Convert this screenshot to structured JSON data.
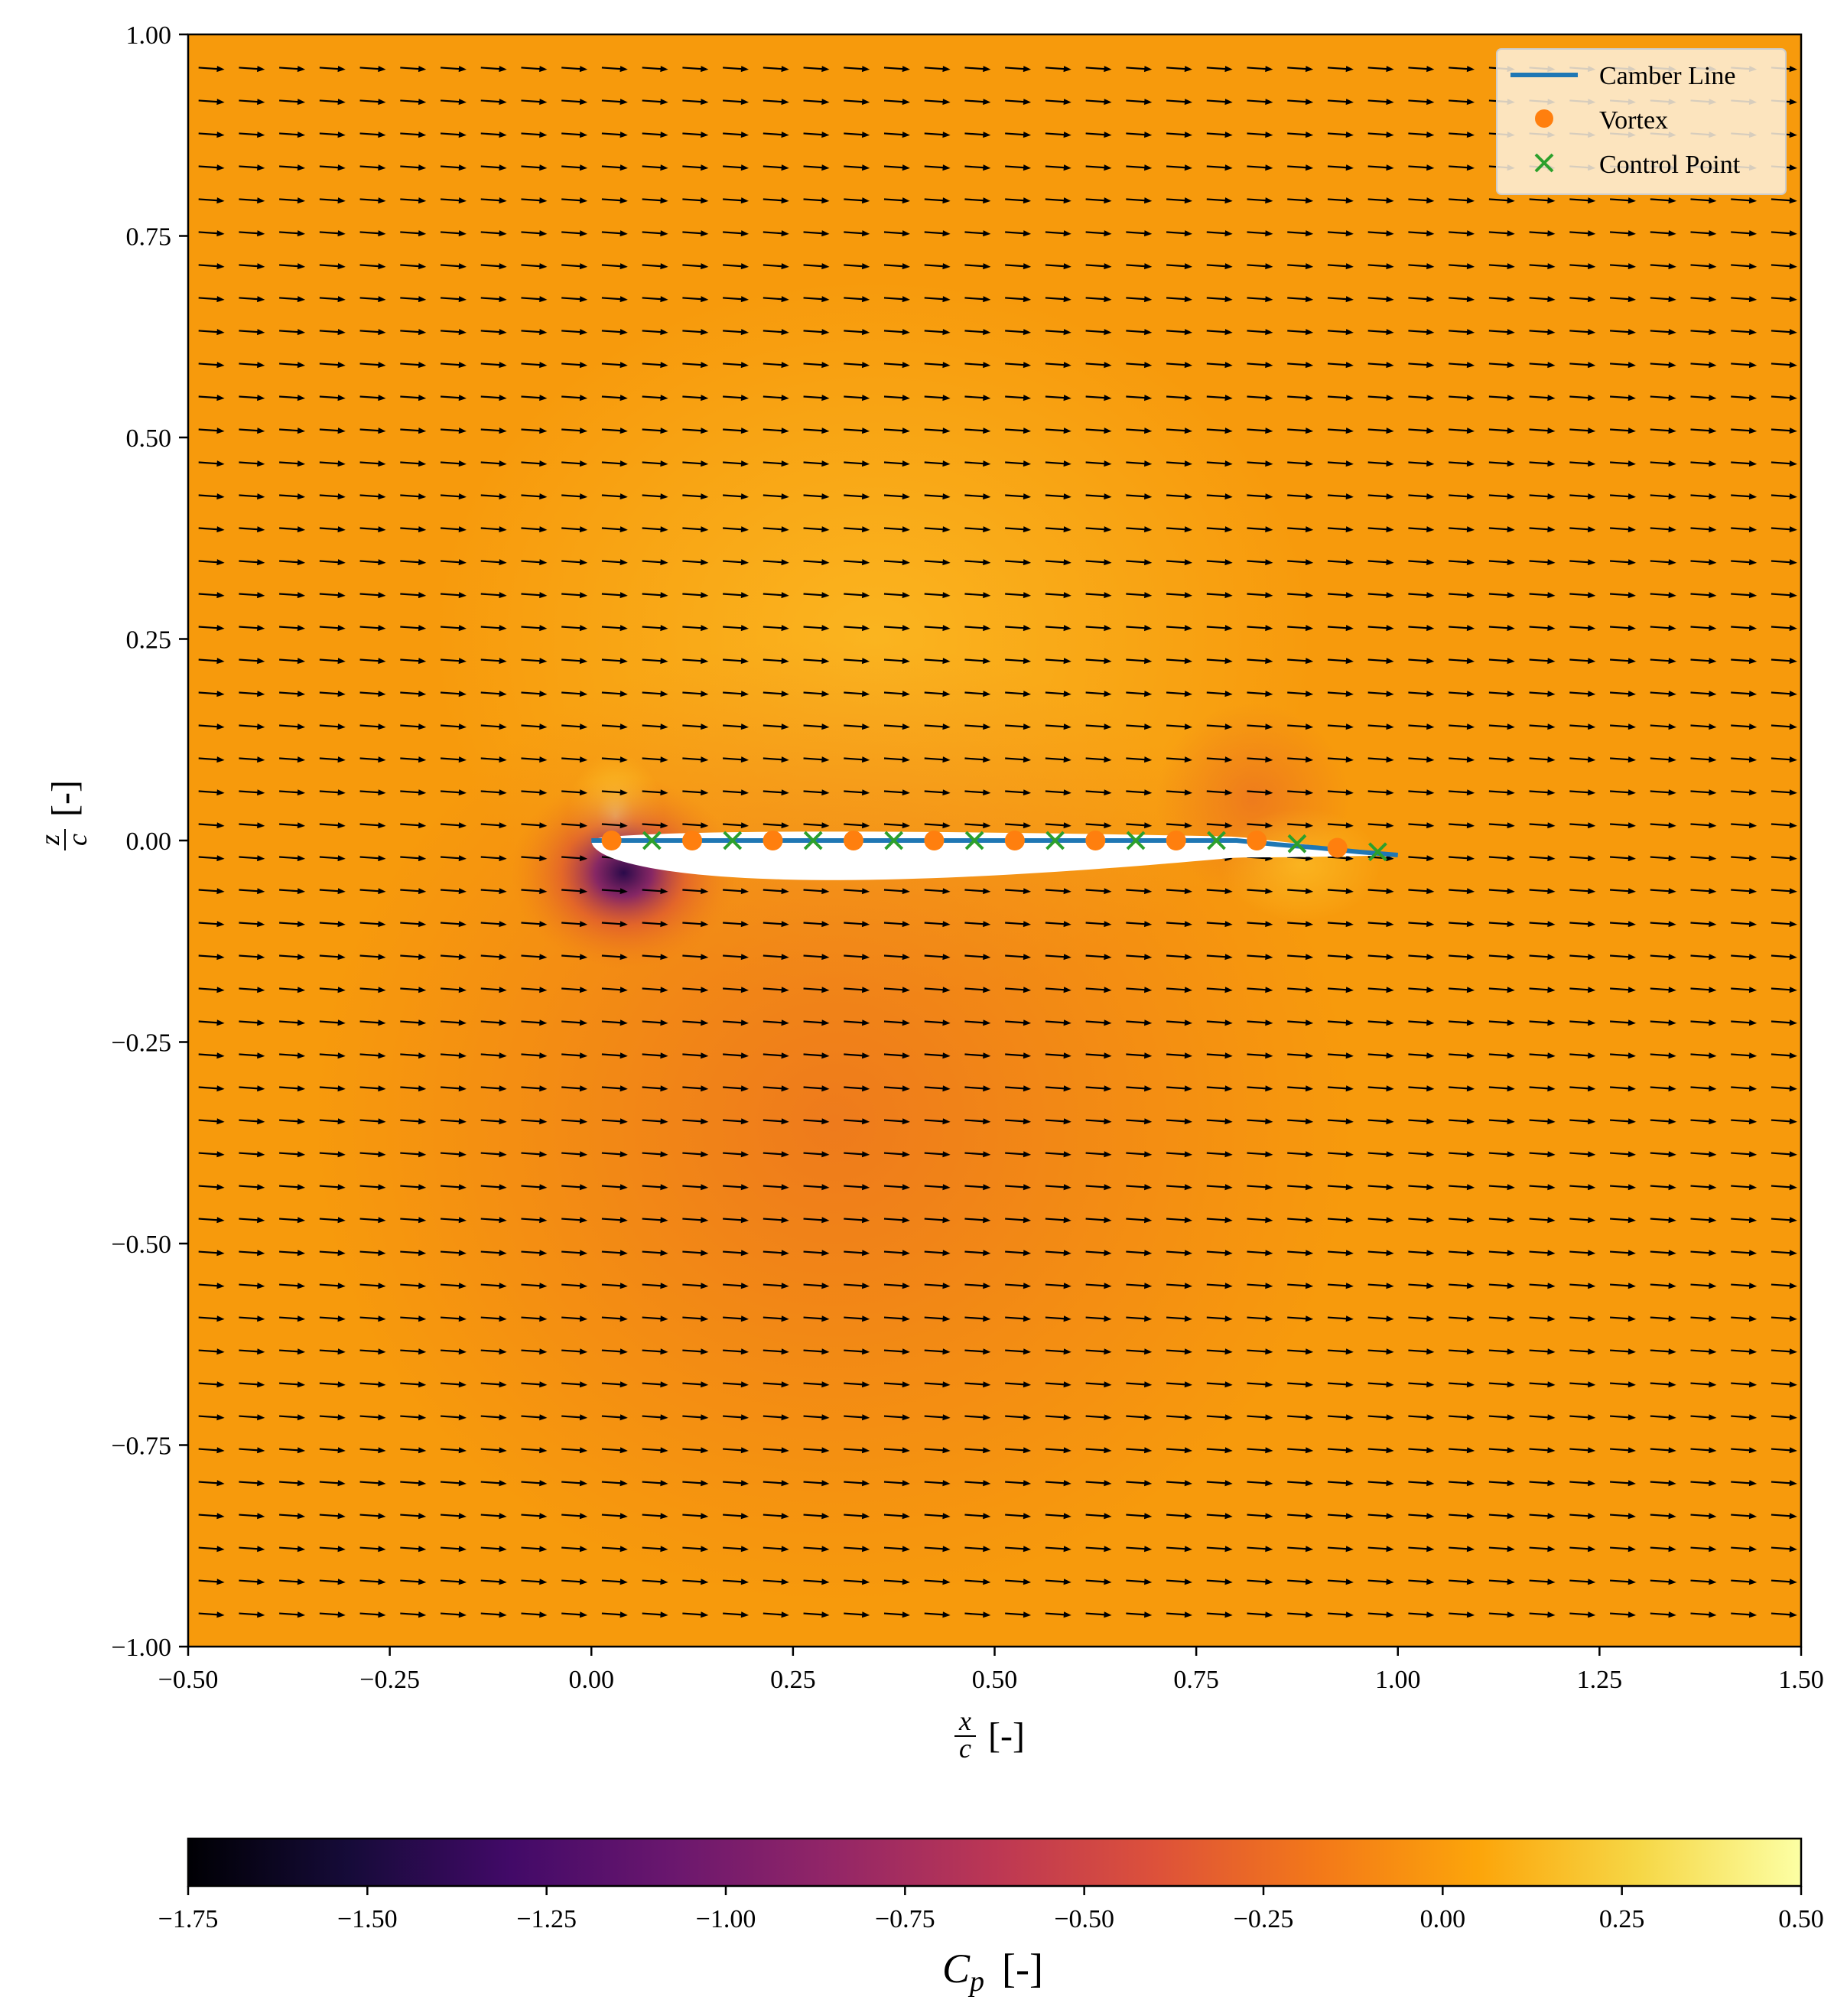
{
  "chart_data": {
    "type": "heatmap",
    "title": "",
    "xlabel": {
      "symbol": "x",
      "denominator": "c",
      "unit": "[-]"
    },
    "ylabel": {
      "symbol": "z",
      "denominator": "c",
      "unit": "[-]"
    },
    "xlim": [
      -0.5,
      1.5
    ],
    "ylim": [
      -1.0,
      1.0
    ],
    "xticks": [
      -0.5,
      -0.25,
      0.0,
      0.25,
      0.5,
      0.75,
      1.0,
      1.25,
      1.5
    ],
    "xtick_labels": [
      "−0.50",
      "−0.25",
      "0.00",
      "0.25",
      "0.50",
      "0.75",
      "1.00",
      "1.25",
      "1.50"
    ],
    "yticks": [
      1.0,
      0.75,
      0.5,
      0.25,
      0.0,
      -0.25,
      -0.5,
      -0.75,
      -1.0
    ],
    "ytick_labels": [
      "1.00",
      "0.75",
      "0.50",
      "0.25",
      "0.00",
      "−0.25",
      "−0.50",
      "−0.75",
      "−1.00"
    ],
    "colorbar": {
      "label_symbol": "C",
      "label_subscript": "p",
      "label_unit": "[-]",
      "colormap": "inferno",
      "range": [
        -1.75,
        0.5
      ],
      "ticks": [
        -1.75,
        -1.5,
        -1.25,
        -1.0,
        -0.75,
        -0.5,
        -0.25,
        0.0,
        0.25,
        0.5
      ],
      "tick_labels": [
        "−1.75",
        "−1.50",
        "−1.25",
        "−1.00",
        "−0.75",
        "−0.50",
        "−0.25",
        "0.00",
        "0.25",
        "0.50"
      ]
    },
    "field": {
      "description_of_values": "pressure coefficient around airfoil, mostly near 0.0",
      "freestream_cp": 0.0,
      "suction_peak": {
        "x": 0.04,
        "z": -0.04,
        "cp": -1.6
      },
      "stagnation": {
        "x": 0.03,
        "z": 0.03,
        "cp": 0.45
      },
      "trailing_high": {
        "x": 0.88,
        "z": -0.03,
        "cp": 0.15
      },
      "flap_low": {
        "x": 0.82,
        "z": 0.05,
        "cp": -0.2
      },
      "lower_region_low": {
        "x": 0.3,
        "z": -0.35,
        "cp": -0.2
      }
    },
    "quiver": {
      "x_start": -0.47,
      "x_step": 0.05,
      "x_count": 40,
      "z_start": -0.96,
      "z_step": 0.0408,
      "z_count": 48,
      "direction": "rightward, slightly downward"
    },
    "airfoil": {
      "leading_edge": [
        0.0,
        0.0
      ],
      "trailing_edge": [
        1.0,
        -0.018
      ],
      "max_thickness": 0.08
    },
    "series": [
      {
        "name": "Camber Line",
        "type": "line",
        "color": "#1f77b4",
        "x": [
          0.0,
          0.1,
          0.2,
          0.3,
          0.4,
          0.5,
          0.6,
          0.7,
          0.8,
          0.85,
          0.9,
          0.95,
          1.0
        ],
        "y": [
          0.0,
          0.0,
          0.0,
          0.0,
          0.0,
          0.0,
          0.0,
          0.0,
          0.0,
          -0.005,
          -0.009,
          -0.014,
          -0.018
        ]
      },
      {
        "name": "Vortex",
        "type": "scatter",
        "marker": "circle",
        "color": "#ff7f0e",
        "x": [
          0.025,
          0.125,
          0.225,
          0.325,
          0.425,
          0.525,
          0.625,
          0.725,
          0.825,
          0.925
        ],
        "y": [
          0.0,
          0.0,
          0.0,
          0.0,
          0.0,
          0.0,
          0.0,
          0.0,
          0.0,
          -0.009
        ]
      },
      {
        "name": "Control Point",
        "type": "scatter",
        "marker": "x",
        "color": "#2ca02c",
        "x": [
          0.075,
          0.175,
          0.275,
          0.375,
          0.475,
          0.575,
          0.675,
          0.775,
          0.875,
          0.975
        ],
        "y": [
          0.0,
          0.0,
          0.0,
          0.0,
          0.0,
          0.0,
          0.0,
          0.0,
          -0.004,
          -0.014
        ]
      }
    ],
    "legend": {
      "position": "top-right",
      "entries": [
        "Camber Line",
        "Vortex",
        "Control Point"
      ]
    }
  }
}
